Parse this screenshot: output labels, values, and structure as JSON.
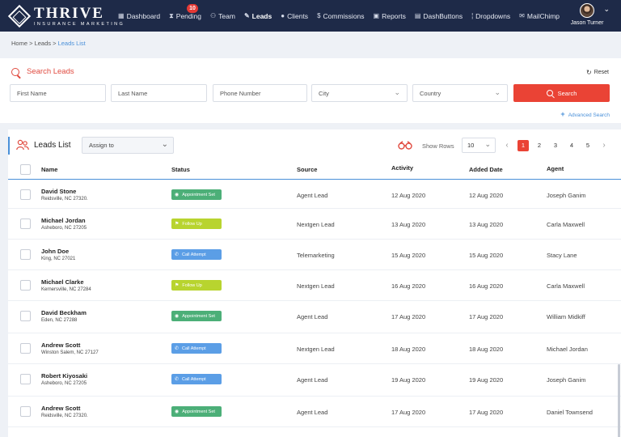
{
  "nav": {
    "brand": "THRIVE",
    "brand_sub": "INSURANCE MARKETING",
    "items": [
      {
        "icon": "dashboard-icon",
        "glyph": "▦",
        "label": "Dashboard",
        "active": false
      },
      {
        "icon": "hourglass-icon",
        "glyph": "⧗",
        "label": "Pending",
        "badge": "10",
        "active": false
      },
      {
        "icon": "team-icon",
        "glyph": "⚇",
        "label": "Team",
        "active": false
      },
      {
        "icon": "leads-icon",
        "glyph": "✎",
        "label": "Leads",
        "active": true
      },
      {
        "icon": "client-icon",
        "glyph": "●",
        "label": "Clients",
        "active": false
      },
      {
        "icon": "dollar-icon",
        "glyph": "$",
        "label": "Commissions",
        "active": false
      },
      {
        "icon": "reports-icon",
        "glyph": "▣",
        "label": "Reports",
        "active": false
      },
      {
        "icon": "dashbuttons-icon",
        "glyph": "▤",
        "label": "DashButtons",
        "active": false
      },
      {
        "icon": "dropdowns-icon",
        "glyph": "¦",
        "label": "Dropdowns",
        "active": false
      },
      {
        "icon": "mail-icon",
        "glyph": "✉",
        "label": "MailChimp",
        "active": false
      }
    ],
    "user_name": "Jason Turner"
  },
  "breadcrumb": {
    "home": "Home",
    "leads": "Leads",
    "current": "Leads List",
    "sep": " > "
  },
  "search": {
    "title": "Search Leads",
    "reset": "Reset",
    "first_name_placeholder": "First Name",
    "last_name_placeholder": "Last Name",
    "phone_placeholder": "Phone Number",
    "city": "City",
    "country": "Country",
    "button": "Search",
    "advanced": "Advanced Search"
  },
  "list": {
    "title": "Leads List",
    "assign": "Assign to",
    "show_rows_label": "Show Rows",
    "show_rows_value": "10",
    "pages": [
      "1",
      "2",
      "3",
      "4",
      "5"
    ],
    "current_page": "1",
    "columns": {
      "name": "Name",
      "status": "Status",
      "source": "Source",
      "activity": "Activity",
      "added": "Added Date",
      "agent": "Agent"
    },
    "rows": [
      {
        "name": "David Stone",
        "address": "Reidsville, NC 27320.",
        "status": "Appointment Set",
        "source": "Agent Lead",
        "activity": "12 Aug 2020",
        "added": "12 Aug 2020",
        "agent": "Joseph Ganim"
      },
      {
        "name": "Michael Jordan",
        "address": "Asheboro, NC 27205",
        "status": "Follow Up",
        "source": "Nextgen Lead",
        "activity": "13 Aug 2020",
        "added": "13 Aug 2020",
        "agent": "Carla Maxwell"
      },
      {
        "name": "John Doe",
        "address": "King, NC 27021",
        "status": "Call Attempt",
        "source": "Telemarketing",
        "activity": "15 Aug 2020",
        "added": "15 Aug 2020",
        "agent": "Stacy Lane"
      },
      {
        "name": "Michael Clarke",
        "address": "Kernersville, NC 27284",
        "status": "Follow Up",
        "source": "Nextgen Lead",
        "activity": "16 Aug 2020",
        "added": "16 Aug 2020",
        "agent": "Carla Maxwell"
      },
      {
        "name": "David Beckham",
        "address": "Eden, NC 27288",
        "status": "Appointment Set",
        "source": "Agent Lead",
        "activity": "17 Aug 2020",
        "added": "17 Aug 2020",
        "agent": "William Midkiff"
      },
      {
        "name": "Andrew Scott",
        "address": "Winston Salem, NC 27127",
        "status": "Call Attempt",
        "source": "Nextgen Lead",
        "activity": "18 Aug 2020",
        "added": "18 Aug 2020",
        "agent": "Michael Jordan"
      },
      {
        "name": "Robert Kiyosaki",
        "address": "Asheboro, NC 27205",
        "status": "Call Attempt",
        "source": "Agent Lead",
        "activity": "19 Aug 2020",
        "added": "19 Aug 2020",
        "agent": "Joseph Ganim"
      },
      {
        "name": "Andrew Scott",
        "address": "Reidsville, NC 27320.",
        "status": "Appointment Set",
        "source": "Agent Lead",
        "activity": "17 Aug 2020",
        "added": "17 Aug 2020",
        "agent": "Daniel Townsend"
      }
    ]
  },
  "status_styles": {
    "Appointment Set": {
      "color": "#4caf78",
      "icon": "calendar-icon",
      "glyph": "◉"
    },
    "Follow Up": {
      "color": "#b8d42f",
      "icon": "follow-up-icon",
      "glyph": "⚑"
    },
    "Call Attempt": {
      "color": "#5b9ee6",
      "icon": "phone-icon",
      "glyph": "✆"
    }
  },
  "colors": {
    "nav_bg": "#1e2a48",
    "accent_red": "#ea4335",
    "accent_blue": "#4a90d9"
  }
}
